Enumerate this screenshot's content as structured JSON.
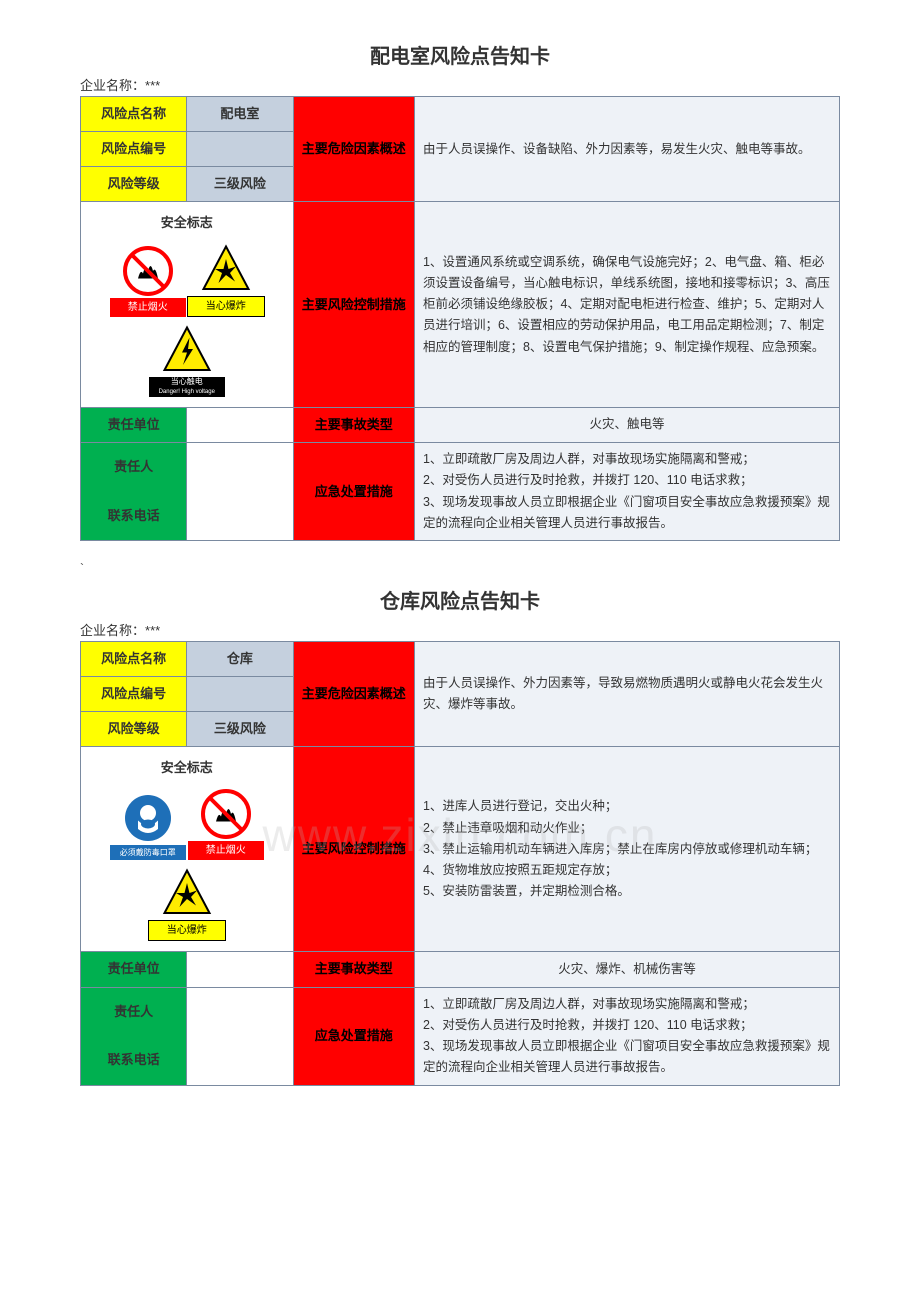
{
  "card1": {
    "title": "配电室风险点告知卡",
    "company_label": "企业名称：",
    "company_value": "***",
    "rows": {
      "name_label": "风险点名称",
      "name_value": "配电室",
      "number_label": "风险点编号",
      "number_value": "",
      "level_label": "风险等级",
      "level_value": "三级风险",
      "hazard_section": "主要危险因素概述",
      "hazard_desc": "由于人员误操作、设备缺陷、外力因素等，易发生火灾、触电等事故。",
      "signs_title": "安全标志",
      "control_section": "主要风险控制措施",
      "control_desc": "1、设置通风系统或空调系统，确保电气设施完好；2、电气盘、箱、柜必须设置设备编号，当心触电标识，单线系统图，接地和接零标识；3、高压柜前必须铺设绝缘胶板；4、定期对配电柜进行检查、维护；5、定期对人员进行培训；6、设置相应的劳动保护用品，电工用品定期检测；7、制定相应的管理制度；8、设置电气保护措施；9、制定操作规程、应急预案。",
      "unit_label": "责任单位",
      "unit_value": "",
      "accident_section": "主要事故类型",
      "accident_desc": "火灾、触电等",
      "person_label": "责任人",
      "phone_label": "联系电话",
      "emergency_section": "应急处置措施",
      "emergency_desc": "1、立即疏散厂房及周边人群，对事故现场实施隔离和警戒；\n2、对受伤人员进行及时抢救，并拨打 120、110 电话求救；\n3、现场发现事故人员立即根据企业《门窗项目安全事故应急救援预案》规定的流程向企业相关管理人员进行事故报告。"
    },
    "signs": [
      {
        "type": "no-fire",
        "label": "禁止烟火",
        "label_style": "red-bg"
      },
      {
        "type": "explosion",
        "label": "当心爆炸",
        "label_style": "yellow-bg"
      },
      {
        "type": "electric",
        "label": "当心触电",
        "sublabel": "Danger! High voltage",
        "label_style": "black-bg"
      }
    ],
    "colors": {
      "yellow": "#ffff00",
      "gray": "#c5d0de",
      "red": "#ff0000",
      "green": "#00b050",
      "desc_bg": "#eef2f7",
      "border": "#7a8aa0"
    }
  },
  "card2": {
    "title": "仓库风险点告知卡",
    "company_label": "企业名称：",
    "company_value": "***",
    "rows": {
      "name_label": "风险点名称",
      "name_value": "仓库",
      "number_label": "风险点编号",
      "number_value": "",
      "level_label": "风险等级",
      "level_value": "三级风险",
      "hazard_section": "主要危险因素概述",
      "hazard_desc": "由于人员误操作、外力因素等，导致易燃物质遇明火或静电火花会发生火灾、爆炸等事故。",
      "signs_title": "安全标志",
      "control_section": "主要风险控制措施",
      "control_desc": "1、进库人员进行登记，交出火种；\n2、禁止违章吸烟和动火作业；\n3、禁止运输用机动车辆进入库房；禁止在库房内停放或修理机动车辆；\n4、货物堆放应按照五距规定存放；\n5、安装防雷装置，并定期检测合格。",
      "unit_label": "责任单位",
      "unit_value": "",
      "accident_section": "主要事故类型",
      "accident_desc": "火灾、爆炸、机械伤害等",
      "person_label": "责任人",
      "phone_label": "联系电话",
      "emergency_section": "应急处置措施",
      "emergency_desc": "1、立即疏散厂房及周边人群，对事故现场实施隔离和警戒；\n2、对受伤人员进行及时抢救，并拨打 120、110 电话求救；\n3、现场发现事故人员立即根据企业《门窗项目安全事故应急救援预案》规定的流程向企业相关管理人员进行事故报告。"
    },
    "signs": [
      {
        "type": "mask",
        "label": "必须戴防毒口罩",
        "label_style": "blue-bg"
      },
      {
        "type": "no-fire",
        "label": "禁止烟火",
        "label_style": "red-bg"
      },
      {
        "type": "explosion",
        "label": "当心爆炸",
        "label_style": "yellow-bg"
      }
    ]
  },
  "backtick": "`"
}
